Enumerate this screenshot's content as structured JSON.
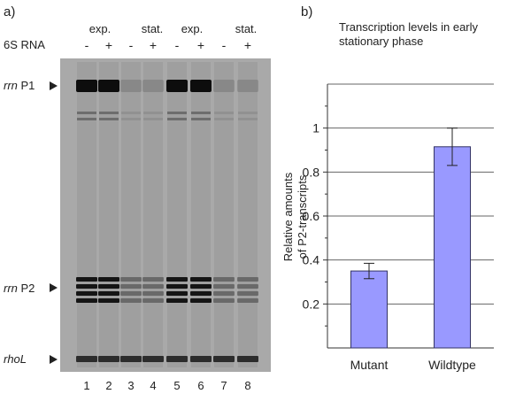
{
  "panel_a": {
    "label": "a)",
    "condition_row_label": "6S RNA",
    "conditions": [
      "exp.",
      "stat.",
      "exp.",
      "stat."
    ],
    "lane_signs": [
      "-",
      "+",
      "-",
      "+",
      "-",
      "+",
      "-",
      "+"
    ],
    "lane_numbers": [
      "1",
      "2",
      "3",
      "4",
      "5",
      "6",
      "7",
      "8"
    ],
    "band_labels": [
      {
        "italic": "rrn",
        "rest": " P1"
      },
      {
        "italic": "rrn",
        "rest": " P2"
      },
      {
        "italic": "rhoL",
        "rest": ""
      }
    ],
    "band_intensity": {
      "P1": [
        0.95,
        0.95,
        0.15,
        0.15,
        0.95,
        0.95,
        0.15,
        0.15
      ],
      "P2": [
        0.9,
        0.9,
        0.35,
        0.35,
        0.9,
        0.9,
        0.35,
        0.35
      ],
      "rhoL": [
        0.75,
        0.75,
        0.75,
        0.75,
        0.75,
        0.75,
        0.75,
        0.75
      ]
    },
    "colors": {
      "gel_bg": "#a9a9a9",
      "band": "#050505"
    }
  },
  "panel_b": {
    "label": "b)"
  },
  "chart_data": {
    "type": "bar",
    "title": "Transcription levels in early stationary phase",
    "title_lines": [
      "Transcription levels in early",
      "stationary phase"
    ],
    "ylabel": "Relative amounts of P2-transcripts",
    "ylabel_lines": [
      "Relative amounts",
      "of P2-transcripts"
    ],
    "xlabel": "",
    "categories": [
      "Mutant",
      "Wildtype"
    ],
    "values": [
      0.35,
      0.915
    ],
    "error_low": [
      0.315,
      0.83
    ],
    "error_high": [
      0.385,
      1.0
    ],
    "ylim": [
      0,
      1.2
    ],
    "yticks": [
      0.2,
      0.4,
      0.6,
      0.8,
      1
    ],
    "ytick_labels": [
      "0.2",
      "0.4",
      "0.6",
      "0.8",
      "1"
    ],
    "grid": true,
    "colors": {
      "bar": "#9999ff",
      "bar_edge": "#333366"
    }
  }
}
